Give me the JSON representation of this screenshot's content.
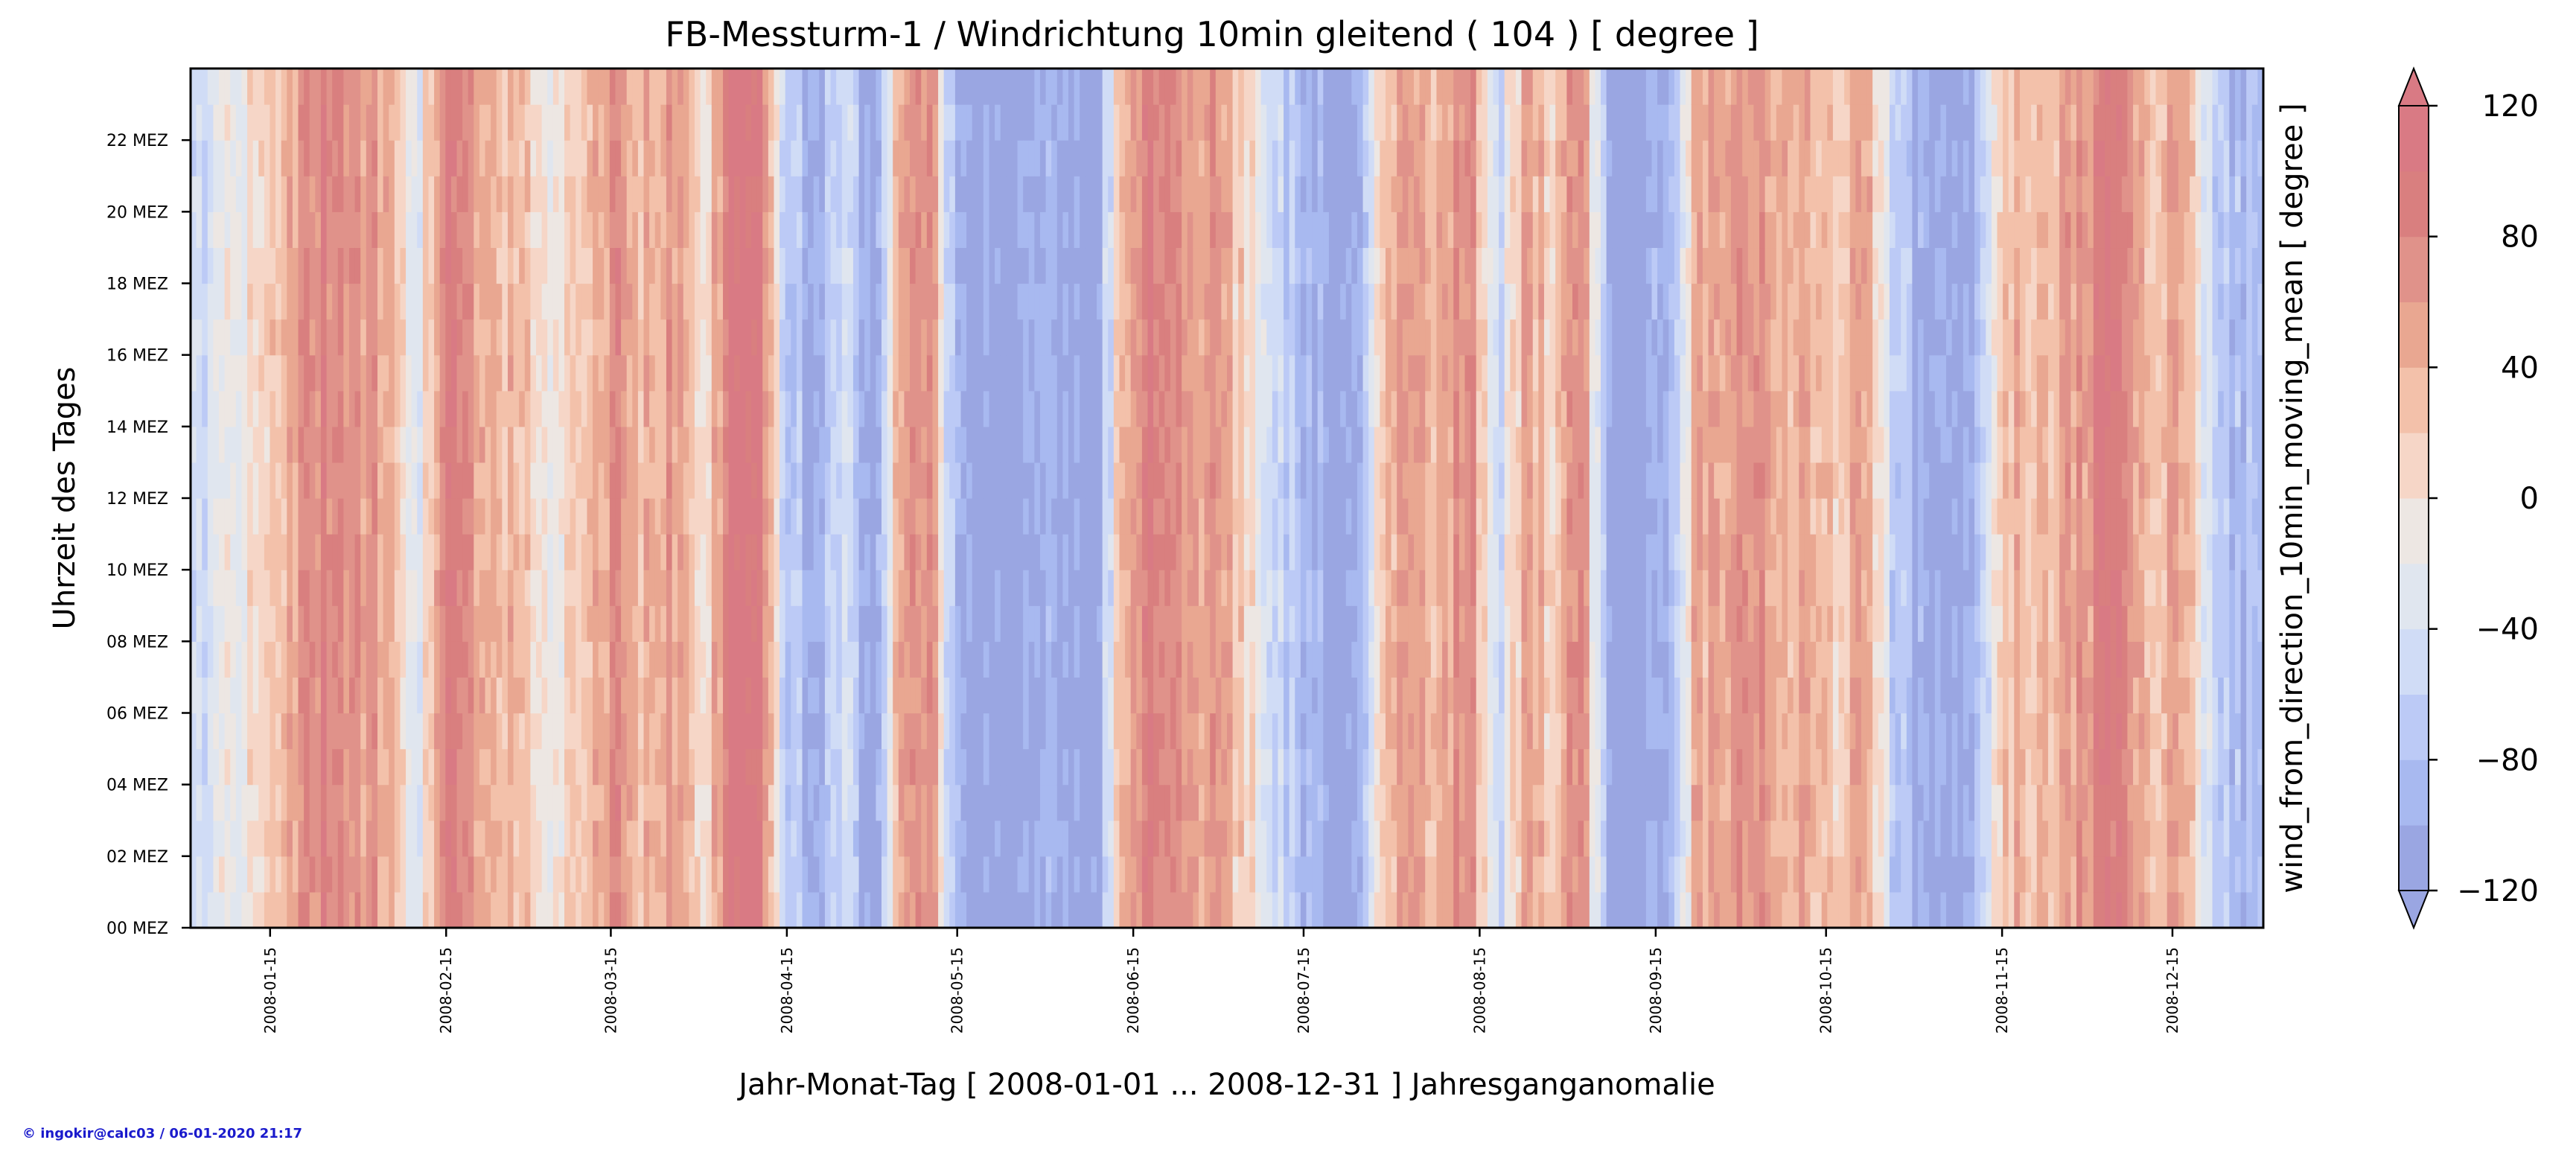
{
  "chart_data": {
    "type": "heatmap",
    "title": "FB-Messturm-1 / Windrichtung 10min gleitend ( 104 ) [ degree ]",
    "xlabel": "Jahr-Monat-Tag [ 2008-01-01 ... 2008-12-31 ] Jahresganganomalie",
    "ylabel": "Uhrzeit des Tages",
    "right_ylabel": "wind_from_direction_10min_moving_mean [ degree ]",
    "x_range": [
      "2008-01-01",
      "2008-12-31"
    ],
    "x_ticks": [
      "2008-01-15",
      "2008-02-15",
      "2008-03-15",
      "2008-04-15",
      "2008-05-15",
      "2008-06-15",
      "2008-07-15",
      "2008-08-15",
      "2008-09-15",
      "2008-10-15",
      "2008-11-15",
      "2008-12-15"
    ],
    "y_ticks": [
      "00 MEZ",
      "02 MEZ",
      "04 MEZ",
      "06 MEZ",
      "08 MEZ",
      "10 MEZ",
      "12 MEZ",
      "14 MEZ",
      "16 MEZ",
      "18 MEZ",
      "20 MEZ",
      "22 MEZ"
    ],
    "y_range_hours": [
      0,
      24
    ],
    "colorbar": {
      "min": -120,
      "max": 120,
      "step": 20,
      "extend": "both",
      "tick_labels": [
        "−120",
        "−80",
        "−40",
        "0",
        "40",
        "80",
        "120"
      ],
      "tick_values": [
        -120,
        -80,
        -40,
        0,
        40,
        80,
        120
      ],
      "colors": [
        "#9aa6e2",
        "#a8b9f0",
        "#bccaf6",
        "#d0dcf6",
        "#e0e6ef",
        "#ede7e3",
        "#f6d6c7",
        "#f3c1aa",
        "#e9a791",
        "#e0928a",
        "#d97f7f",
        "#d97a84"
      ]
    },
    "daily_anomaly_sample": [
      {
        "date": "2008-01-01",
        "value": -60
      },
      {
        "date": "2008-01-06",
        "value": -30
      },
      {
        "date": "2008-01-11",
        "value": 0
      },
      {
        "date": "2008-01-16",
        "value": 30
      },
      {
        "date": "2008-01-21",
        "value": 70
      },
      {
        "date": "2008-01-26",
        "value": 90
      },
      {
        "date": "2008-01-31",
        "value": 60
      },
      {
        "date": "2008-02-05",
        "value": 50
      },
      {
        "date": "2008-02-10",
        "value": -40
      },
      {
        "date": "2008-02-15",
        "value": 110
      },
      {
        "date": "2008-02-20",
        "value": 60
      },
      {
        "date": "2008-02-25",
        "value": 40
      },
      {
        "date": "2008-03-01",
        "value": 20
      },
      {
        "date": "2008-03-06",
        "value": -20
      },
      {
        "date": "2008-03-11",
        "value": 40
      },
      {
        "date": "2008-03-16",
        "value": 70
      },
      {
        "date": "2008-03-21",
        "value": 30
      },
      {
        "date": "2008-03-26",
        "value": 60
      },
      {
        "date": "2008-03-31",
        "value": -10
      },
      {
        "date": "2008-04-05",
        "value": 100
      },
      {
        "date": "2008-04-10",
        "value": 110
      },
      {
        "date": "2008-04-15",
        "value": -60
      },
      {
        "date": "2008-04-20",
        "value": -100
      },
      {
        "date": "2008-04-25",
        "value": -40
      },
      {
        "date": "2008-04-30",
        "value": -120
      },
      {
        "date": "2008-05-05",
        "value": 40
      },
      {
        "date": "2008-05-10",
        "value": 80
      },
      {
        "date": "2008-05-15",
        "value": -110
      },
      {
        "date": "2008-05-20",
        "value": -120
      },
      {
        "date": "2008-05-25",
        "value": -120
      },
      {
        "date": "2008-05-30",
        "value": -90
      },
      {
        "date": "2008-06-04",
        "value": -120
      },
      {
        "date": "2008-06-09",
        "value": -100
      },
      {
        "date": "2008-06-14",
        "value": 60
      },
      {
        "date": "2008-06-19",
        "value": 90
      },
      {
        "date": "2008-06-24",
        "value": 50
      },
      {
        "date": "2008-06-29",
        "value": 70
      },
      {
        "date": "2008-07-04",
        "value": 20
      },
      {
        "date": "2008-07-09",
        "value": -40
      },
      {
        "date": "2008-07-14",
        "value": -80
      },
      {
        "date": "2008-07-19",
        "value": -110
      },
      {
        "date": "2008-07-24",
        "value": -120
      },
      {
        "date": "2008-07-29",
        "value": 40
      },
      {
        "date": "2008-08-03",
        "value": 70
      },
      {
        "date": "2008-08-08",
        "value": 30
      },
      {
        "date": "2008-08-13",
        "value": 90
      },
      {
        "date": "2008-08-18",
        "value": -60
      },
      {
        "date": "2008-08-23",
        "value": 50
      },
      {
        "date": "2008-08-28",
        "value": 20
      },
      {
        "date": "2008-09-02",
        "value": 80
      },
      {
        "date": "2008-09-07",
        "value": -120
      },
      {
        "date": "2008-09-12",
        "value": -120
      },
      {
        "date": "2008-09-17",
        "value": -100
      },
      {
        "date": "2008-09-22",
        "value": 40
      },
      {
        "date": "2008-09-27",
        "value": 60
      },
      {
        "date": "2008-10-02",
        "value": 80
      },
      {
        "date": "2008-10-07",
        "value": 30
      },
      {
        "date": "2008-10-12",
        "value": 50
      },
      {
        "date": "2008-10-17",
        "value": 10
      },
      {
        "date": "2008-10-22",
        "value": 60
      },
      {
        "date": "2008-10-27",
        "value": -60
      },
      {
        "date": "2008-11-01",
        "value": -110
      },
      {
        "date": "2008-11-06",
        "value": -120
      },
      {
        "date": "2008-11-11",
        "value": -80
      },
      {
        "date": "2008-11-16",
        "value": 40
      },
      {
        "date": "2008-11-21",
        "value": 20
      },
      {
        "date": "2008-11-26",
        "value": 50
      },
      {
        "date": "2008-12-01",
        "value": 70
      },
      {
        "date": "2008-12-06",
        "value": 100
      },
      {
        "date": "2008-12-11",
        "value": 30
      },
      {
        "date": "2008-12-16",
        "value": 60
      },
      {
        "date": "2008-12-21",
        "value": -40
      },
      {
        "date": "2008-12-26",
        "value": -90
      },
      {
        "date": "2008-12-31",
        "value": -70
      }
    ]
  },
  "credit": "© ingokir@calc03 / 06-01-2020 21:17"
}
